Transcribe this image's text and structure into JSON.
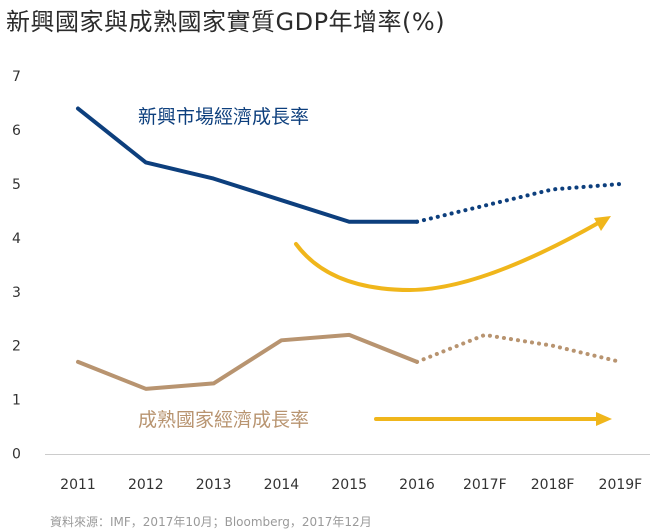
{
  "title": "新興國家與成熟國家實質GDP年增率(%)",
  "source": "資料來源：IMF，2017年10月；Bloomberg，2017年12月",
  "colors": {
    "emerging": "#0d3f7d",
    "mature": "#b89470",
    "arrow": "#f0b61b",
    "axis": "#cccccc"
  },
  "chart_data": {
    "type": "line",
    "title": "新興國家與成熟國家實質GDP年增率(%)",
    "categories": [
      "2011",
      "2012",
      "2013",
      "2014",
      "2015",
      "2016",
      "2017F",
      "2018F",
      "2019F"
    ],
    "ylim": [
      0,
      7
    ],
    "yticks": [
      "0",
      "1",
      "2",
      "3",
      "4",
      "5",
      "6",
      "7"
    ],
    "grid": false,
    "forecast_start_index": 5,
    "series": [
      {
        "name": "新興市場經濟成長率",
        "values": [
          6.4,
          5.4,
          5.1,
          4.7,
          4.3,
          4.3,
          4.6,
          4.9,
          5.0
        ]
      },
      {
        "name": "成熟國家經濟成長率",
        "values": [
          1.7,
          1.2,
          1.3,
          2.1,
          2.2,
          1.7,
          2.2,
          2.0,
          1.7
        ]
      }
    ]
  }
}
